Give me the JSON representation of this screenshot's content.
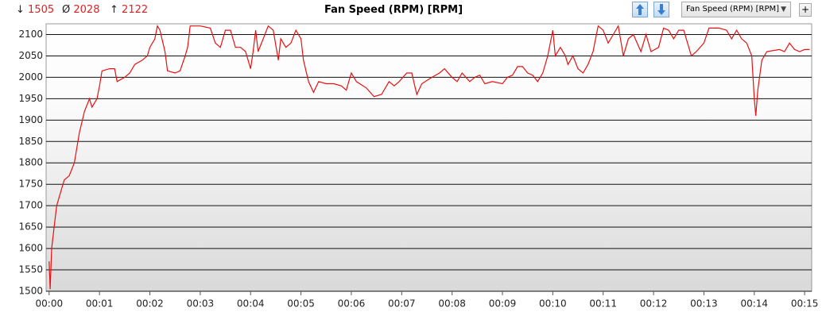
{
  "header": {
    "min": {
      "symbol": "↓",
      "value": 1505
    },
    "avg": {
      "symbol": "Ø",
      "value": 2028
    },
    "max": {
      "symbol": "↑",
      "value": 2122
    },
    "dropdown": "Fan Speed (RPM) [RPM]",
    "add_button": "+"
  },
  "chart_data": {
    "type": "line",
    "title": "Fan Speed (RPM) [RPM]",
    "grid": true,
    "xlim": [
      -0.06,
      15.14
    ],
    "ylim": [
      1500,
      2125
    ],
    "xticks": [
      {
        "value": 0,
        "label": "00:00"
      },
      {
        "value": 1,
        "label": "00:01"
      },
      {
        "value": 2,
        "label": "00:02"
      },
      {
        "value": 3,
        "label": "00:03"
      },
      {
        "value": 4,
        "label": "00:04"
      },
      {
        "value": 5,
        "label": "00:05"
      },
      {
        "value": 6,
        "label": "00:06"
      },
      {
        "value": 7,
        "label": "00:07"
      },
      {
        "value": 8,
        "label": "00:08"
      },
      {
        "value": 9,
        "label": "00:09"
      },
      {
        "value": 10,
        "label": "00:10"
      },
      {
        "value": 11,
        "label": "00:11"
      },
      {
        "value": 12,
        "label": "00:12"
      },
      {
        "value": 13,
        "label": "00:13"
      },
      {
        "value": 14,
        "label": "00:14"
      },
      {
        "value": 15,
        "label": "00:15"
      }
    ],
    "yticks": [
      1500,
      1550,
      1600,
      1650,
      1700,
      1750,
      1800,
      1850,
      1900,
      1950,
      2000,
      2050,
      2100
    ],
    "x": [
      0,
      0.02,
      0.05,
      0.1,
      0.15,
      0.25,
      0.3,
      0.4,
      0.5,
      0.6,
      0.7,
      0.8,
      0.85,
      0.95,
      1.0,
      1.05,
      1.2,
      1.3,
      1.35,
      1.5,
      1.6,
      1.7,
      1.85,
      1.95,
      2.0,
      2.1,
      2.15,
      2.2,
      2.3,
      2.35,
      2.5,
      2.6,
      2.7,
      2.75,
      2.8,
      3.0,
      3.2,
      3.3,
      3.4,
      3.5,
      3.6,
      3.7,
      3.8,
      3.9,
      4.0,
      4.05,
      4.1,
      4.15,
      4.25,
      4.35,
      4.45,
      4.55,
      4.6,
      4.7,
      4.8,
      4.9,
      5.0,
      5.05,
      5.15,
      5.25,
      5.35,
      5.5,
      5.65,
      5.8,
      5.9,
      6.0,
      6.1,
      6.3,
      6.45,
      6.6,
      6.75,
      6.85,
      6.95,
      7.1,
      7.2,
      7.25,
      7.3,
      7.4,
      7.6,
      7.75,
      7.85,
      8.0,
      8.1,
      8.2,
      8.35,
      8.45,
      8.55,
      8.65,
      8.8,
      9.0,
      9.1,
      9.2,
      9.3,
      9.4,
      9.5,
      9.6,
      9.7,
      9.8,
      9.9,
      9.95,
      10.0,
      10.05,
      10.15,
      10.25,
      10.3,
      10.4,
      10.5,
      10.6,
      10.7,
      10.8,
      10.9,
      11.0,
      11.1,
      11.2,
      11.3,
      11.4,
      11.5,
      11.6,
      11.75,
      11.85,
      11.95,
      12.1,
      12.2,
      12.3,
      12.4,
      12.5,
      12.6,
      12.75,
      12.85,
      13.0,
      13.1,
      13.3,
      13.45,
      13.55,
      13.65,
      13.75,
      13.85,
      13.95,
      14.0,
      14.03,
      14.07,
      14.15,
      14.25,
      14.5,
      14.6,
      14.7,
      14.8,
      14.9,
      15.0,
      15.1
    ],
    "series": [
      {
        "color": "#e81010",
        "values": [
          1570,
          1505,
          1600,
          1650,
          1700,
          1740,
          1760,
          1770,
          1800,
          1870,
          1920,
          1950,
          1930,
          1950,
          1980,
          2015,
          2020,
          2020,
          1990,
          2000,
          2010,
          2030,
          2040,
          2050,
          2070,
          2090,
          2120,
          2110,
          2060,
          2015,
          2010,
          2015,
          2050,
          2070,
          2120,
          2120,
          2115,
          2080,
          2070,
          2110,
          2110,
          2070,
          2070,
          2060,
          2020,
          2060,
          2110,
          2060,
          2090,
          2120,
          2110,
          2040,
          2090,
          2070,
          2080,
          2110,
          2090,
          2040,
          1990,
          1965,
          1990,
          1985,
          1985,
          1980,
          1970,
          2010,
          1990,
          1975,
          1955,
          1960,
          1990,
          1980,
          1990,
          2010,
          2010,
          1985,
          1960,
          1985,
          2000,
          2010,
          2020,
          2000,
          1990,
          2010,
          1990,
          2000,
          2005,
          1985,
          1990,
          1985,
          2000,
          2005,
          2025,
          2025,
          2010,
          2005,
          1990,
          2010,
          2050,
          2080,
          2110,
          2050,
          2070,
          2050,
          2030,
          2050,
          2020,
          2010,
          2030,
          2060,
          2120,
          2110,
          2080,
          2100,
          2120,
          2050,
          2090,
          2100,
          2060,
          2100,
          2060,
          2070,
          2115,
          2110,
          2090,
          2110,
          2110,
          2050,
          2060,
          2080,
          2115,
          2115,
          2110,
          2090,
          2110,
          2090,
          2080,
          2050,
          1950,
          1910,
          1970,
          2040,
          2060,
          2065,
          2060,
          2080,
          2065,
          2060,
          2065,
          2065
        ]
      }
    ]
  }
}
